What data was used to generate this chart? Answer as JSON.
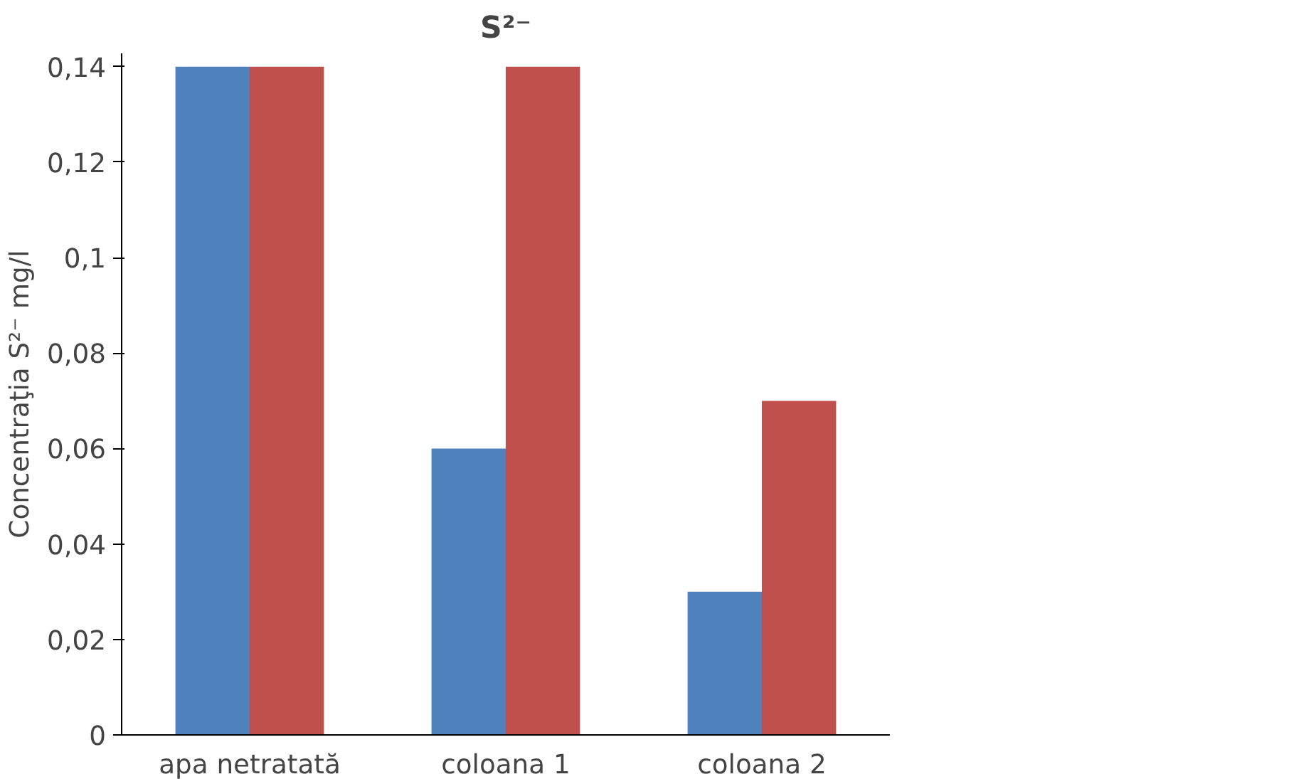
{
  "chart_data": {
    "type": "bar",
    "title": "S²⁻",
    "ylabel": "Concentraţia S²⁻ mg/l",
    "categories": [
      "apa netratată",
      "coloana 1",
      "coloana 2"
    ],
    "series": [
      {
        "color": "#4f81bd",
        "values": [
          0.14,
          0.06,
          0.03
        ]
      },
      {
        "color": "#c0504d",
        "values": [
          0.14,
          0.14,
          0.07
        ]
      }
    ],
    "ylim": [
      0,
      0.14
    ],
    "yticks": [
      {
        "value": 0,
        "label": "0"
      },
      {
        "value": 0.02,
        "label": "0,02"
      },
      {
        "value": 0.04,
        "label": "0,04"
      },
      {
        "value": 0.06,
        "label": "0,06"
      },
      {
        "value": 0.08,
        "label": "0,08"
      },
      {
        "value": 0.1,
        "label": "0,1"
      },
      {
        "value": 0.12,
        "label": "0,12"
      },
      {
        "value": 0.14,
        "label": "0,14"
      }
    ],
    "grid": false
  }
}
